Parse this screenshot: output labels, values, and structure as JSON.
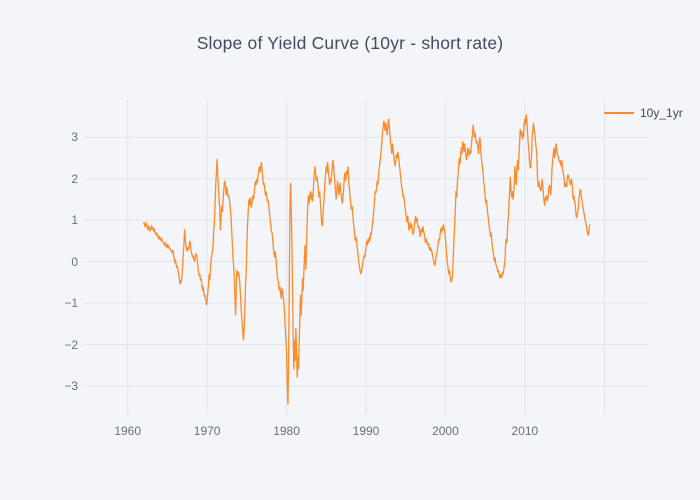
{
  "title": "Slope of Yield Curve (10yr - short rate)",
  "legend": {
    "items": [
      {
        "label": "10y_1yr",
        "color": "#fc8b2b"
      }
    ],
    "position": "top-right"
  },
  "colors": {
    "background": "#f3f5f9",
    "gridline": "#e2e5ed",
    "line": "#fc8b2b",
    "title_text": "#444b5d",
    "tick_text": "#69707e"
  },
  "chart_data": {
    "type": "line",
    "title": "Slope of Yield Curve (10yr - short rate)",
    "xlabel": "",
    "ylabel": "",
    "grid": true,
    "legend_position": "top-right",
    "xlim": [
      1954.5,
      2025.5
    ],
    "ylim": [
      -3.7,
      3.9
    ],
    "xgridlines": [
      1960,
      1970,
      1980,
      1990,
      2000,
      2010,
      2020
    ],
    "xtickvals": [
      1960,
      1970,
      1980,
      1990,
      2000,
      2010
    ],
    "xticklabels": [
      "1960",
      "1970",
      "1980",
      "1990",
      "2000",
      "2010"
    ],
    "ytickvals": [
      -3,
      -2,
      -1,
      0,
      1,
      2,
      3
    ],
    "yticklabels": [
      "−3",
      "−2",
      "−1",
      "0",
      "1",
      "2",
      "3"
    ],
    "series": [
      {
        "name": "10y_1yr",
        "color": "#fc8b2b",
        "x_start_year": 1962.0,
        "x_step_years": 0.0833333,
        "values": [
          0.9,
          0.95,
          0.85,
          0.88,
          0.92,
          0.85,
          0.8,
          0.85,
          0.78,
          0.82,
          0.75,
          0.78,
          0.85,
          0.8,
          0.82,
          0.75,
          0.78,
          0.72,
          0.68,
          0.65,
          0.7,
          0.62,
          0.58,
          0.55,
          0.6,
          0.55,
          0.52,
          0.58,
          0.5,
          0.48,
          0.45,
          0.42,
          0.4,
          0.45,
          0.38,
          0.35,
          0.4,
          0.35,
          0.38,
          0.32,
          0.3,
          0.28,
          0.25,
          0.22,
          0.28,
          0.2,
          0.1,
          0.0,
          0.05,
          -0.05,
          -0.15,
          -0.1,
          -0.2,
          -0.3,
          -0.4,
          -0.55,
          -0.45,
          -0.5,
          -0.35,
          -0.1,
          0.2,
          0.45,
          0.78,
          0.55,
          0.4,
          0.3,
          0.25,
          0.35,
          0.28,
          0.42,
          0.5,
          0.38,
          0.25,
          0.18,
          0.1,
          0.15,
          0.05,
          0.02,
          0.12,
          0.2,
          0.15,
          0.05,
          -0.1,
          -0.25,
          -0.35,
          -0.3,
          -0.45,
          -0.4,
          -0.55,
          -0.7,
          -0.6,
          -0.75,
          -0.85,
          -0.8,
          -0.95,
          -1.05,
          -0.95,
          -0.75,
          -0.55,
          -0.3,
          -0.45,
          -0.2,
          0.05,
          0.15,
          0.25,
          0.4,
          0.75,
          0.95,
          1.4,
          1.85,
          2.15,
          2.48,
          2.1,
          1.75,
          1.55,
          1.3,
          0.75,
          1.05,
          1.35,
          1.2,
          1.45,
          1.7,
          1.9,
          1.95,
          1.75,
          1.6,
          1.8,
          1.65,
          1.55,
          1.6,
          1.45,
          1.3,
          1.1,
          0.8,
          0.45,
          0.15,
          -0.1,
          -0.35,
          -0.9,
          -1.3,
          -0.6,
          -0.2,
          -0.35,
          -0.25,
          -0.3,
          -0.45,
          -0.7,
          -1.0,
          -1.25,
          -1.5,
          -1.7,
          -1.9,
          -1.6,
          -1.1,
          -0.6,
          -0.25,
          0.3,
          0.85,
          1.2,
          1.5,
          1.35,
          1.55,
          1.4,
          1.3,
          1.45,
          1.6,
          1.5,
          1.65,
          1.8,
          1.95,
          1.85,
          2.0,
          1.9,
          2.1,
          2.2,
          2.3,
          2.15,
          2.25,
          2.4,
          2.2,
          2.05,
          1.85,
          1.9,
          1.75,
          1.6,
          1.7,
          1.55,
          1.45,
          1.5,
          1.35,
          1.2,
          1.05,
          0.9,
          0.75,
          0.7,
          0.55,
          0.35,
          0.2,
          0.1,
          0.25,
          0.05,
          -0.15,
          -0.35,
          -0.45,
          -0.55,
          -0.7,
          -0.6,
          -0.75,
          -0.9,
          -0.65,
          -0.7,
          -0.85,
          -1.0,
          -1.3,
          -1.6,
          -1.9,
          -2.2,
          -2.9,
          -3.45,
          -2.6,
          -0.8,
          1.2,
          1.9,
          1.3,
          0.45,
          -0.6,
          -1.8,
          -2.6,
          -1.9,
          -2.4,
          -1.6,
          -2.1,
          -2.8,
          -2.3,
          -2.6,
          -2.0,
          -1.4,
          -0.8,
          -1.3,
          -0.9,
          -0.4,
          -0.7,
          -0.3,
          0.1,
          0.4,
          -0.2,
          0.3,
          0.9,
          1.3,
          1.6,
          1.4,
          1.55,
          1.7,
          1.5,
          1.65,
          1.45,
          1.6,
          1.9,
          2.15,
          2.3,
          2.1,
          1.95,
          2.05,
          1.9,
          1.75,
          1.55,
          1.7,
          1.45,
          1.2,
          0.95,
          0.85,
          1.1,
          1.35,
          1.6,
          1.9,
          2.1,
          2.3,
          2.15,
          2.4,
          2.2,
          2.05,
          1.85,
          2.0,
          1.9,
          2.1,
          2.25,
          2.45,
          2.3,
          2.1,
          1.9,
          1.7,
          1.5,
          1.75,
          1.95,
          1.8,
          1.6,
          1.75,
          1.9,
          1.7,
          1.55,
          1.4,
          1.5,
          1.7,
          2.0,
          2.15,
          1.95,
          2.05,
          2.2,
          2.1,
          2.3,
          1.9,
          1.75,
          1.55,
          1.4,
          1.25,
          1.35,
          1.15,
          0.95,
          0.8,
          0.65,
          0.5,
          0.6,
          0.45,
          0.3,
          0.15,
          0.0,
          -0.1,
          -0.2,
          -0.3,
          -0.25,
          -0.15,
          -0.05,
          0.05,
          0.15,
          0.1,
          0.2,
          0.35,
          0.5,
          0.4,
          0.55,
          0.45,
          0.6,
          0.5,
          0.7,
          0.65,
          0.8,
          0.95,
          1.1,
          1.3,
          1.5,
          1.7,
          1.65,
          1.8,
          1.95,
          1.85,
          2.1,
          2.25,
          2.4,
          2.55,
          2.7,
          2.9,
          3.1,
          3.25,
          3.4,
          3.3,
          3.15,
          3.35,
          3.2,
          3.05,
          3.25,
          3.45,
          3.3,
          3.1,
          2.9,
          2.75,
          2.6,
          2.85,
          2.7,
          2.55,
          2.4,
          2.3,
          2.45,
          2.6,
          2.5,
          2.65,
          2.55,
          2.4,
          2.25,
          2.1,
          1.95,
          1.8,
          1.7,
          1.55,
          1.6,
          1.45,
          1.3,
          1.2,
          1.05,
          0.95,
          1.1,
          0.9,
          0.75,
          0.85,
          0.95,
          0.8,
          0.9,
          0.75,
          0.65,
          0.7,
          0.85,
          1.0,
          1.1,
          0.95,
          1.05,
          0.9,
          0.8,
          0.85,
          0.7,
          0.6,
          0.75,
          0.8,
          0.7,
          0.85,
          0.75,
          0.65,
          0.55,
          0.45,
          0.55,
          0.5,
          0.4,
          0.45,
          0.35,
          0.3,
          0.35,
          0.25,
          0.3,
          0.2,
          0.1,
          0.05,
          -0.05,
          -0.1,
          0.0,
          0.15,
          0.2,
          0.3,
          0.45,
          0.55,
          0.5,
          0.65,
          0.8,
          0.7,
          0.85,
          0.75,
          0.9,
          0.8,
          0.7,
          0.55,
          0.35,
          0.1,
          -0.05,
          -0.15,
          -0.3,
          -0.2,
          -0.35,
          -0.45,
          -0.5,
          -0.4,
          -0.25,
          0.2,
          0.55,
          0.9,
          1.3,
          1.7,
          1.55,
          1.9,
          2.1,
          2.3,
          2.5,
          2.35,
          2.6,
          2.75,
          2.6,
          2.9,
          2.8,
          2.65,
          2.85,
          2.7,
          2.55,
          2.45,
          2.6,
          2.75,
          2.65,
          2.55,
          2.7,
          2.6,
          2.8,
          2.95,
          3.1,
          3.3,
          3.15,
          3.0,
          3.1,
          2.95,
          2.85,
          2.9,
          2.75,
          2.6,
          2.85,
          3.0,
          2.8,
          2.55,
          2.4,
          2.25,
          2.1,
          1.9,
          1.75,
          1.55,
          1.4,
          1.5,
          1.3,
          1.15,
          1.0,
          0.85,
          0.75,
          0.6,
          0.7,
          0.5,
          0.35,
          0.25,
          0.1,
          0.0,
          0.1,
          -0.05,
          -0.1,
          -0.15,
          -0.25,
          -0.2,
          -0.3,
          -0.4,
          -0.35,
          -0.3,
          -0.4,
          -0.25,
          -0.3,
          -0.2,
          -0.1,
          0.05,
          0.45,
          0.55,
          0.45,
          0.9,
          1.05,
          1.45,
          1.7,
          2.05,
          1.75,
          1.55,
          1.7,
          1.5,
          1.65,
          1.85,
          2.3,
          2.05,
          1.85,
          2.25,
          2.45,
          2.2,
          2.55,
          2.85,
          3.2,
          3.05,
          3.15,
          2.95,
          3.1,
          3.0,
          3.35,
          3.45,
          3.3,
          3.55,
          3.4,
          3.15,
          2.85,
          2.7,
          2.4,
          2.25,
          2.3,
          2.55,
          3.05,
          3.15,
          3.35,
          3.2,
          3.1,
          2.9,
          2.75,
          2.6,
          2.05,
          1.8,
          1.95,
          1.85,
          1.75,
          1.7,
          1.8,
          2.0,
          1.85,
          1.65,
          1.45,
          1.35,
          1.55,
          1.5,
          1.6,
          1.45,
          1.55,
          1.75,
          1.85,
          1.8,
          1.6,
          1.85,
          2.25,
          2.45,
          2.6,
          2.75,
          2.5,
          2.6,
          2.85,
          2.75,
          2.6,
          2.55,
          2.5,
          2.4,
          2.45,
          2.35,
          2.3,
          2.45,
          2.2,
          2.15,
          2.05,
          1.8,
          1.85,
          1.9,
          1.8,
          2.0,
          2.1,
          2.05,
          1.95,
          1.9,
          1.85,
          2.0,
          1.95,
          1.75,
          1.5,
          1.6,
          1.45,
          1.4,
          1.2,
          1.05,
          1.15,
          1.2,
          1.35,
          1.55,
          1.7,
          1.75,
          1.6,
          1.5,
          1.4,
          1.3,
          1.2,
          1.1,
          1.0,
          0.95,
          0.85,
          0.75,
          0.65,
          0.65,
          0.8,
          0.9
        ]
      }
    ]
  }
}
